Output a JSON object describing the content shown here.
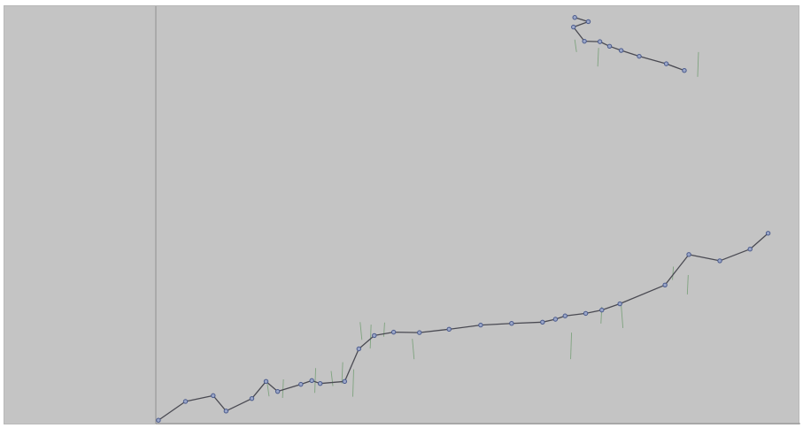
{
  "chart_data": {
    "type": "line",
    "title": "",
    "xlabel": "",
    "ylabel": "",
    "xlim": [
      0,
      100
    ],
    "ylim": [
      0,
      100
    ],
    "grid": false,
    "colors": {
      "background": "#c4c4c4",
      "axis": "#8f8f8f",
      "line": "#4a4a52",
      "marker_stroke": "#4a5a8c",
      "marker_fill": "#9aa6c8",
      "tick": "#7fa37f"
    },
    "series": [
      {
        "points": [
          [
            0.4,
            0.8
          ],
          [
            4.6,
            5.3
          ],
          [
            8.9,
            6.7
          ],
          [
            10.9,
            3.0
          ],
          [
            14.9,
            6.0
          ],
          [
            17.1,
            10.1
          ],
          [
            18.9,
            7.7
          ],
          [
            22.5,
            9.4
          ],
          [
            24.2,
            10.3
          ],
          [
            25.5,
            9.6
          ],
          [
            29.3,
            10.1
          ],
          [
            31.5,
            17.9
          ],
          [
            33.9,
            21.1
          ],
          [
            36.9,
            21.9
          ],
          [
            40.9,
            21.8
          ],
          [
            45.5,
            22.6
          ],
          [
            50.4,
            23.6
          ],
          [
            55.2,
            24.0
          ],
          [
            60.0,
            24.3
          ],
          [
            62.0,
            25.0
          ],
          [
            63.5,
            25.8
          ],
          [
            66.7,
            26.4
          ],
          [
            69.2,
            27.2
          ],
          [
            72.0,
            28.7
          ],
          [
            79.0,
            33.2
          ],
          [
            82.7,
            40.5
          ],
          [
            87.5,
            39.0
          ],
          [
            92.2,
            41.8
          ],
          [
            95.0,
            45.6
          ]
        ],
        "ticks": [
          [
            17.3,
            9.5
          ],
          [
            19.8,
            10.6
          ],
          [
            24.8,
            13.3
          ],
          [
            27.2,
            12.6
          ],
          [
            29.0,
            14.7
          ],
          [
            30.7,
            13.0
          ],
          [
            31.7,
            24.3
          ],
          [
            33.4,
            23.7
          ],
          [
            35.5,
            24.2
          ],
          [
            39.8,
            20.3
          ],
          [
            64.5,
            21.8
          ],
          [
            69.2,
            28.0
          ],
          [
            72.2,
            28.4
          ],
          [
            80.3,
            37.6
          ],
          [
            82.6,
            35.6
          ]
        ]
      },
      {
        "points": [
          [
            65.0,
            97.3
          ],
          [
            67.1,
            96.3
          ],
          [
            64.8,
            95.0
          ],
          [
            66.5,
            91.6
          ],
          [
            68.9,
            91.5
          ],
          [
            70.4,
            90.4
          ],
          [
            72.2,
            89.4
          ],
          [
            75.0,
            88.0
          ],
          [
            79.2,
            86.2
          ],
          [
            82.0,
            84.6
          ]
        ],
        "ticks": [
          [
            65.0,
            92.0
          ],
          [
            68.7,
            90.0
          ],
          [
            84.2,
            89.0
          ]
        ]
      }
    ]
  }
}
